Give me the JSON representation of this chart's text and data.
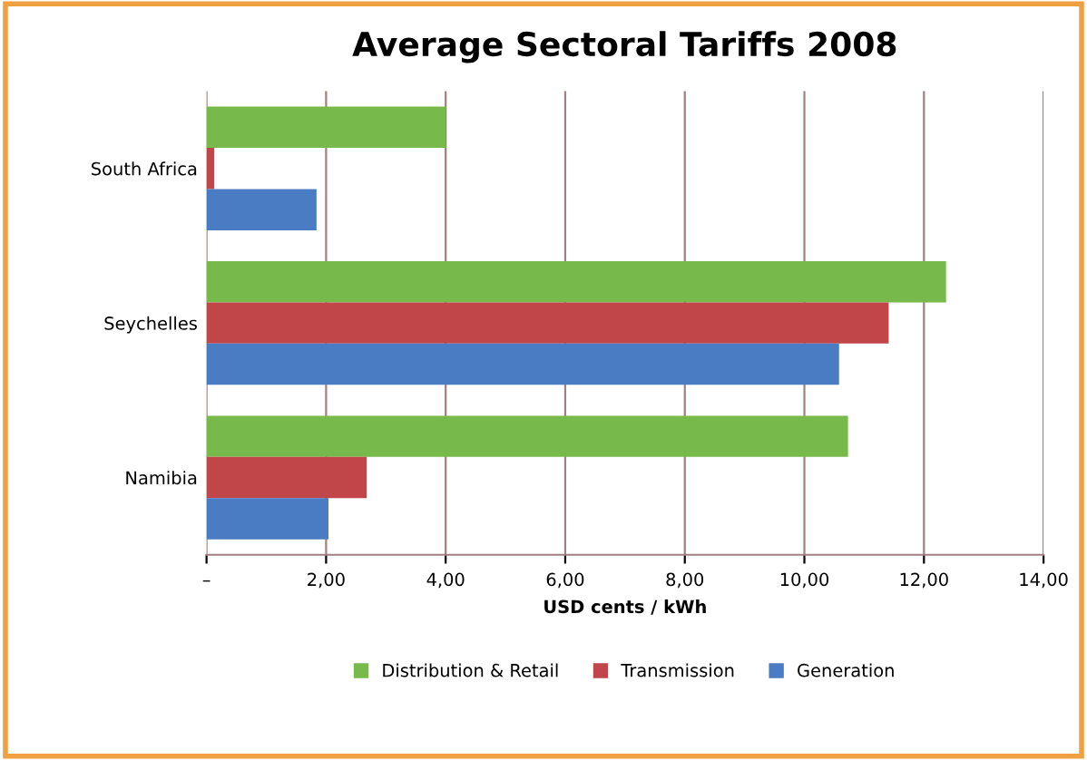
{
  "chart_data": {
    "type": "bar",
    "orientation": "horizontal",
    "title": "Average Sectoral Tariffs 2008",
    "xlabel": "USD cents / kWh",
    "categories": [
      "South Africa",
      "Seychelles",
      "Namibia"
    ],
    "series": [
      {
        "name": "Distribution & Retail",
        "color": "#77b94a",
        "values": [
          4.0,
          12.37,
          10.73
        ]
      },
      {
        "name": "Transmission",
        "color": "#c0464a",
        "values": [
          0.13,
          11.41,
          2.68
        ]
      },
      {
        "name": "Generation",
        "color": "#4a7cc4",
        "values": [
          1.84,
          10.58,
          2.04
        ]
      }
    ],
    "xlim": [
      0,
      14
    ],
    "xticks": [
      {
        "value": 0,
        "label": "–"
      },
      {
        "value": 2,
        "label": "2,00"
      },
      {
        "value": 4,
        "label": "4,00"
      },
      {
        "value": 6,
        "label": "6,00"
      },
      {
        "value": 8,
        "label": "8,00"
      },
      {
        "value": 10,
        "label": "10,00"
      },
      {
        "value": 12,
        "label": "12,00"
      },
      {
        "value": 14,
        "label": "14,00"
      }
    ],
    "grid": "x",
    "legend": "bottom"
  }
}
